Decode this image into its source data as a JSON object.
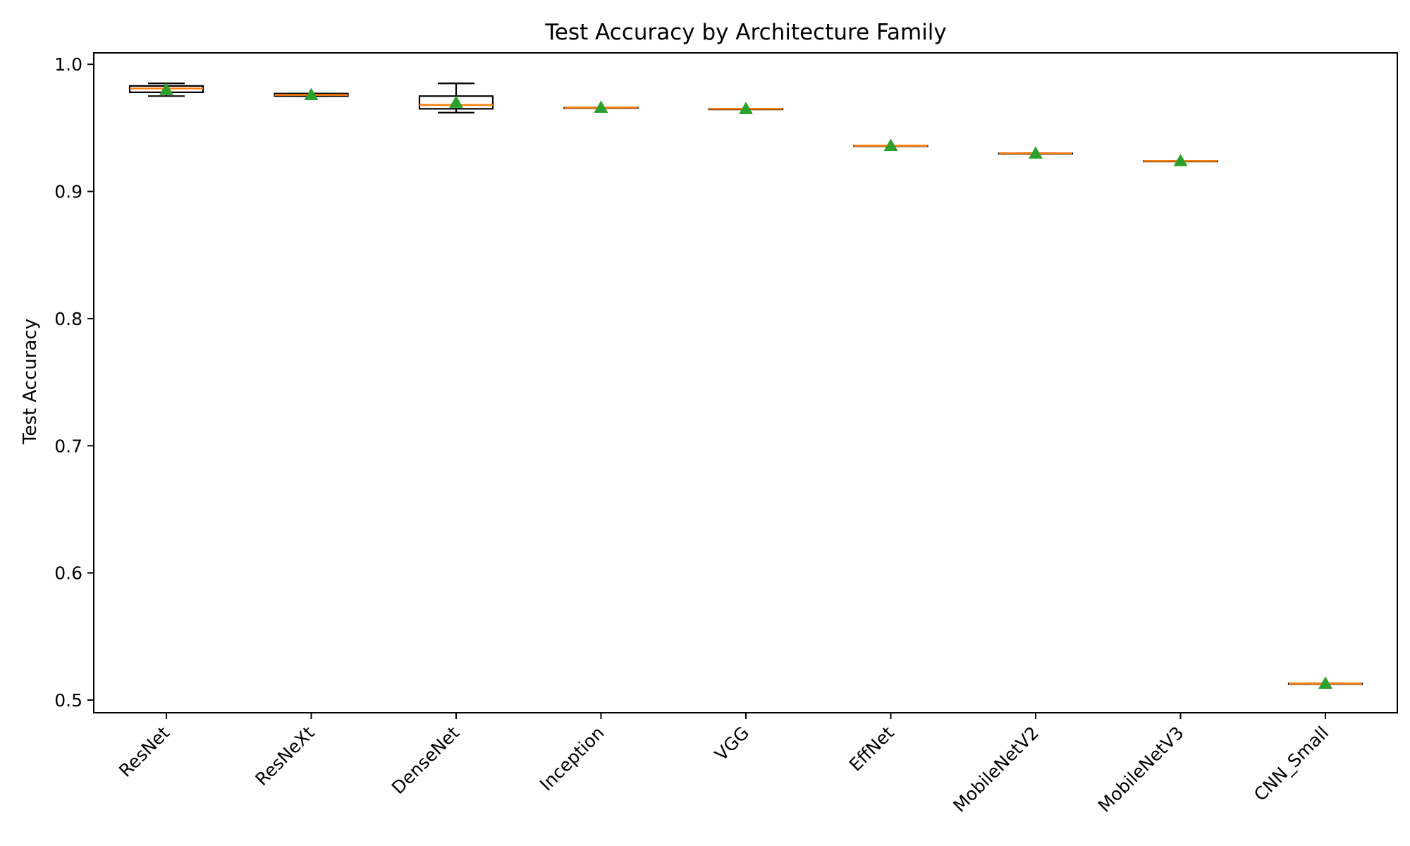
{
  "chart_data": {
    "type": "box",
    "title": "Test Accuracy by Architecture Family",
    "xlabel": "",
    "ylabel": "Test Accuracy",
    "ylim": [
      0.49,
      1.009
    ],
    "yticks": [
      0.5,
      0.6,
      0.7,
      0.8,
      0.9,
      1.0
    ],
    "ytick_labels": [
      "0.5",
      "0.6",
      "0.7",
      "0.8",
      "0.9",
      "1.0"
    ],
    "grid": false,
    "colors": {
      "box": "#000000",
      "median": "#ff7f0e",
      "mean": "#2ca02c"
    },
    "categories": [
      "ResNet",
      "ResNeXt",
      "DenseNet",
      "Inception",
      "VGG",
      "EffNet",
      "MobileNetV2",
      "MobileNetV3",
      "CNN_Small"
    ],
    "boxes": [
      {
        "name": "ResNet",
        "whislo": 0.975,
        "q1": 0.978,
        "median": 0.981,
        "q3": 0.983,
        "whishi": 0.985,
        "mean": 0.98
      },
      {
        "name": "ResNeXt",
        "whislo": 0.975,
        "q1": 0.975,
        "median": 0.976,
        "q3": 0.977,
        "whishi": 0.977,
        "mean": 0.976
      },
      {
        "name": "DenseNet",
        "whislo": 0.962,
        "q1": 0.965,
        "median": 0.968,
        "q3": 0.975,
        "whishi": 0.985,
        "mean": 0.97
      },
      {
        "name": "Inception",
        "whislo": 0.966,
        "q1": 0.966,
        "median": 0.966,
        "q3": 0.966,
        "whishi": 0.966,
        "mean": 0.966
      },
      {
        "name": "VGG",
        "whislo": 0.965,
        "q1": 0.965,
        "median": 0.965,
        "q3": 0.965,
        "whishi": 0.965,
        "mean": 0.965
      },
      {
        "name": "EffNet",
        "whislo": 0.936,
        "q1": 0.936,
        "median": 0.936,
        "q3": 0.936,
        "whishi": 0.936,
        "mean": 0.936
      },
      {
        "name": "MobileNetV2",
        "whislo": 0.93,
        "q1": 0.93,
        "median": 0.93,
        "q3": 0.93,
        "whishi": 0.93,
        "mean": 0.93
      },
      {
        "name": "MobileNetV3",
        "whislo": 0.924,
        "q1": 0.924,
        "median": 0.924,
        "q3": 0.924,
        "whishi": 0.924,
        "mean": 0.924
      },
      {
        "name": "CNN_Small",
        "whislo": 0.513,
        "q1": 0.513,
        "median": 0.513,
        "q3": 0.513,
        "whishi": 0.513,
        "mean": 0.513
      }
    ]
  }
}
